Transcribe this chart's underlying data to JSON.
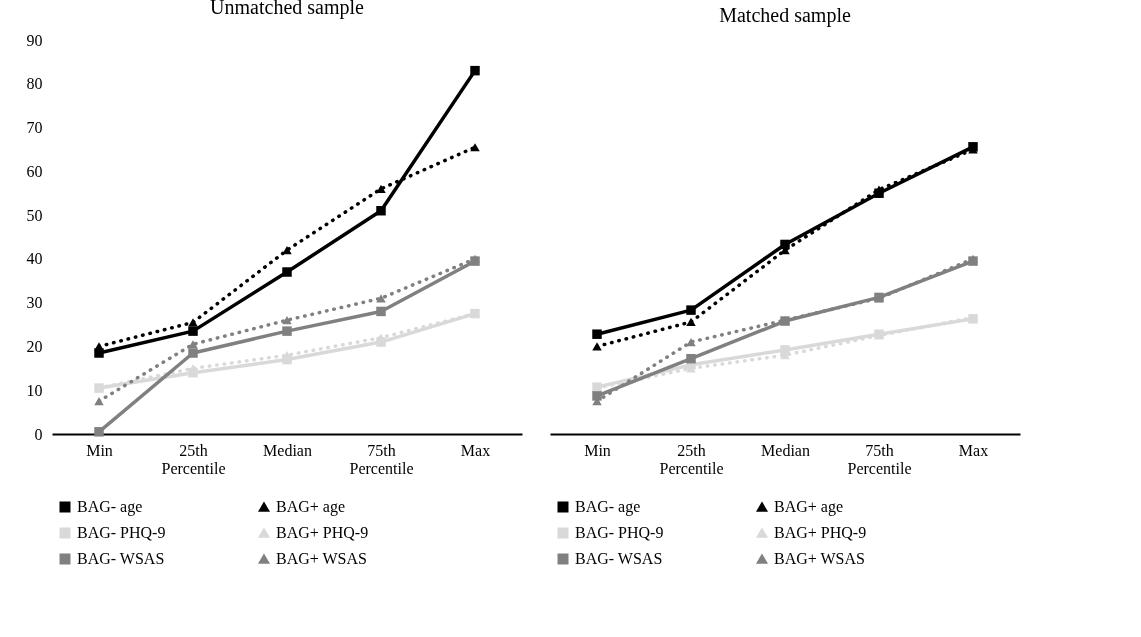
{
  "chart_data": [
    {
      "type": "line",
      "title": "Unmatched sample",
      "categories": [
        "Min",
        "25th Percentile",
        "Median",
        "75th Percentile",
        "Max"
      ],
      "ylim": [
        0,
        90
      ],
      "yticks": [
        0,
        10,
        20,
        30,
        40,
        50,
        60,
        70,
        80,
        90
      ],
      "grid": false,
      "legend": "bottom",
      "series": [
        {
          "name": "BAG- age",
          "color": "#000000",
          "marker": "square",
          "line_style": "solid",
          "values": [
            18.5,
            23.5,
            37,
            51,
            83
          ]
        },
        {
          "name": "BAG+ age",
          "color": "#000000",
          "marker": "triangle",
          "line_style": "dotted",
          "values": [
            20,
            25.5,
            42,
            56,
            65.5
          ]
        },
        {
          "name": "BAG- PHQ-9",
          "color": "#d9d9d9",
          "marker": "square",
          "line_style": "solid",
          "values": [
            10.5,
            14,
            17,
            21,
            27.5
          ]
        },
        {
          "name": "BAG+ PHQ-9",
          "color": "#d9d9d9",
          "marker": "triangle",
          "line_style": "dotted",
          "values": [
            10.5,
            15,
            18,
            22,
            27.5
          ]
        },
        {
          "name": "BAG- WSAS",
          "color": "#808080",
          "marker": "square",
          "line_style": "solid",
          "values": [
            0.5,
            18.5,
            23.5,
            28,
            39.5
          ]
        },
        {
          "name": "BAG+ WSAS",
          "color": "#808080",
          "marker": "triangle",
          "line_style": "dotted",
          "values": [
            7.5,
            20.5,
            26,
            31,
            40
          ]
        }
      ]
    },
    {
      "type": "line",
      "title": "Matched sample",
      "categories": [
        "Min",
        "25th Percentile",
        "Median",
        "75th Percentile",
        "Max"
      ],
      "ylim": [
        0,
        90
      ],
      "yticks": [
        0,
        10,
        20,
        30,
        40,
        50,
        60,
        70,
        80,
        90
      ],
      "tick_labels": "x",
      "grid": false,
      "legend": "bottom",
      "series": [
        {
          "name": "BAG- age",
          "color": "#000000",
          "marker": "square",
          "line_style": "solid",
          "values": [
            22.8,
            28.3,
            43.3,
            55,
            65.6
          ]
        },
        {
          "name": "BAG+ age",
          "color": "#000000",
          "marker": "triangle",
          "line_style": "dotted",
          "values": [
            20,
            25.6,
            42,
            55.8,
            65
          ]
        },
        {
          "name": "BAG- PHQ-9",
          "color": "#d9d9d9",
          "marker": "square",
          "line_style": "solid",
          "values": [
            10.7,
            15.8,
            19.2,
            22.8,
            26.3
          ]
        },
        {
          "name": "BAG+ PHQ-9",
          "color": "#d9d9d9",
          "marker": "triangle",
          "line_style": "dotted",
          "values": [
            10.5,
            15,
            18,
            22.5,
            26.6
          ]
        },
        {
          "name": "BAG- WSAS",
          "color": "#808080",
          "marker": "square",
          "line_style": "solid",
          "values": [
            8.7,
            17.2,
            25.8,
            31.2,
            39.5
          ]
        },
        {
          "name": "BAG+ WSAS",
          "color": "#808080",
          "marker": "triangle",
          "line_style": "dotted",
          "values": [
            7.5,
            21,
            26,
            31,
            40
          ]
        }
      ]
    }
  ]
}
